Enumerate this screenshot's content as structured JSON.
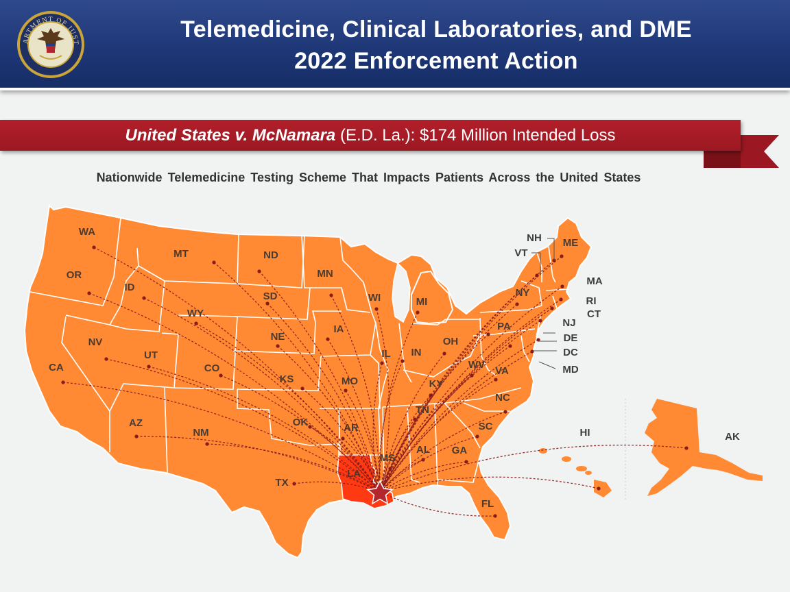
{
  "header": {
    "title_line1": "Telemedicine, Clinical Laboratories, and DME",
    "title_line2": "2022 Enforcement Action",
    "seal_text": "DEPARTMENT OF JUSTICE"
  },
  "banner": {
    "case_name": "United States v. McNamara",
    "court": " (E.D. La.):  ",
    "loss": "$174 Million Intended Loss"
  },
  "subtitle": "Nationwide Telemedicine Testing Scheme That Impacts Patients Across the United States",
  "map": {
    "hub_state": "LA",
    "states": [
      "WA",
      "OR",
      "CA",
      "NV",
      "ID",
      "MT",
      "WY",
      "UT",
      "CO",
      "AZ",
      "NM",
      "ND",
      "SD",
      "NE",
      "KS",
      "OK",
      "TX",
      "MN",
      "IA",
      "MO",
      "AR",
      "LA",
      "WI",
      "IL",
      "MI",
      "IN",
      "OH",
      "KY",
      "TN",
      "MS",
      "AL",
      "GA",
      "FL",
      "SC",
      "NC",
      "VA",
      "WV",
      "PA",
      "NY",
      "VT",
      "NH",
      "ME",
      "MA",
      "RI",
      "CT",
      "NJ",
      "DE",
      "DC",
      "MD",
      "AK",
      "HI"
    ],
    "colors": {
      "land": "#ff8a33",
      "hub": "#ff3a12",
      "border": "#ffffff",
      "lines": "#8a1b1b",
      "star": "#b3262d"
    }
  }
}
